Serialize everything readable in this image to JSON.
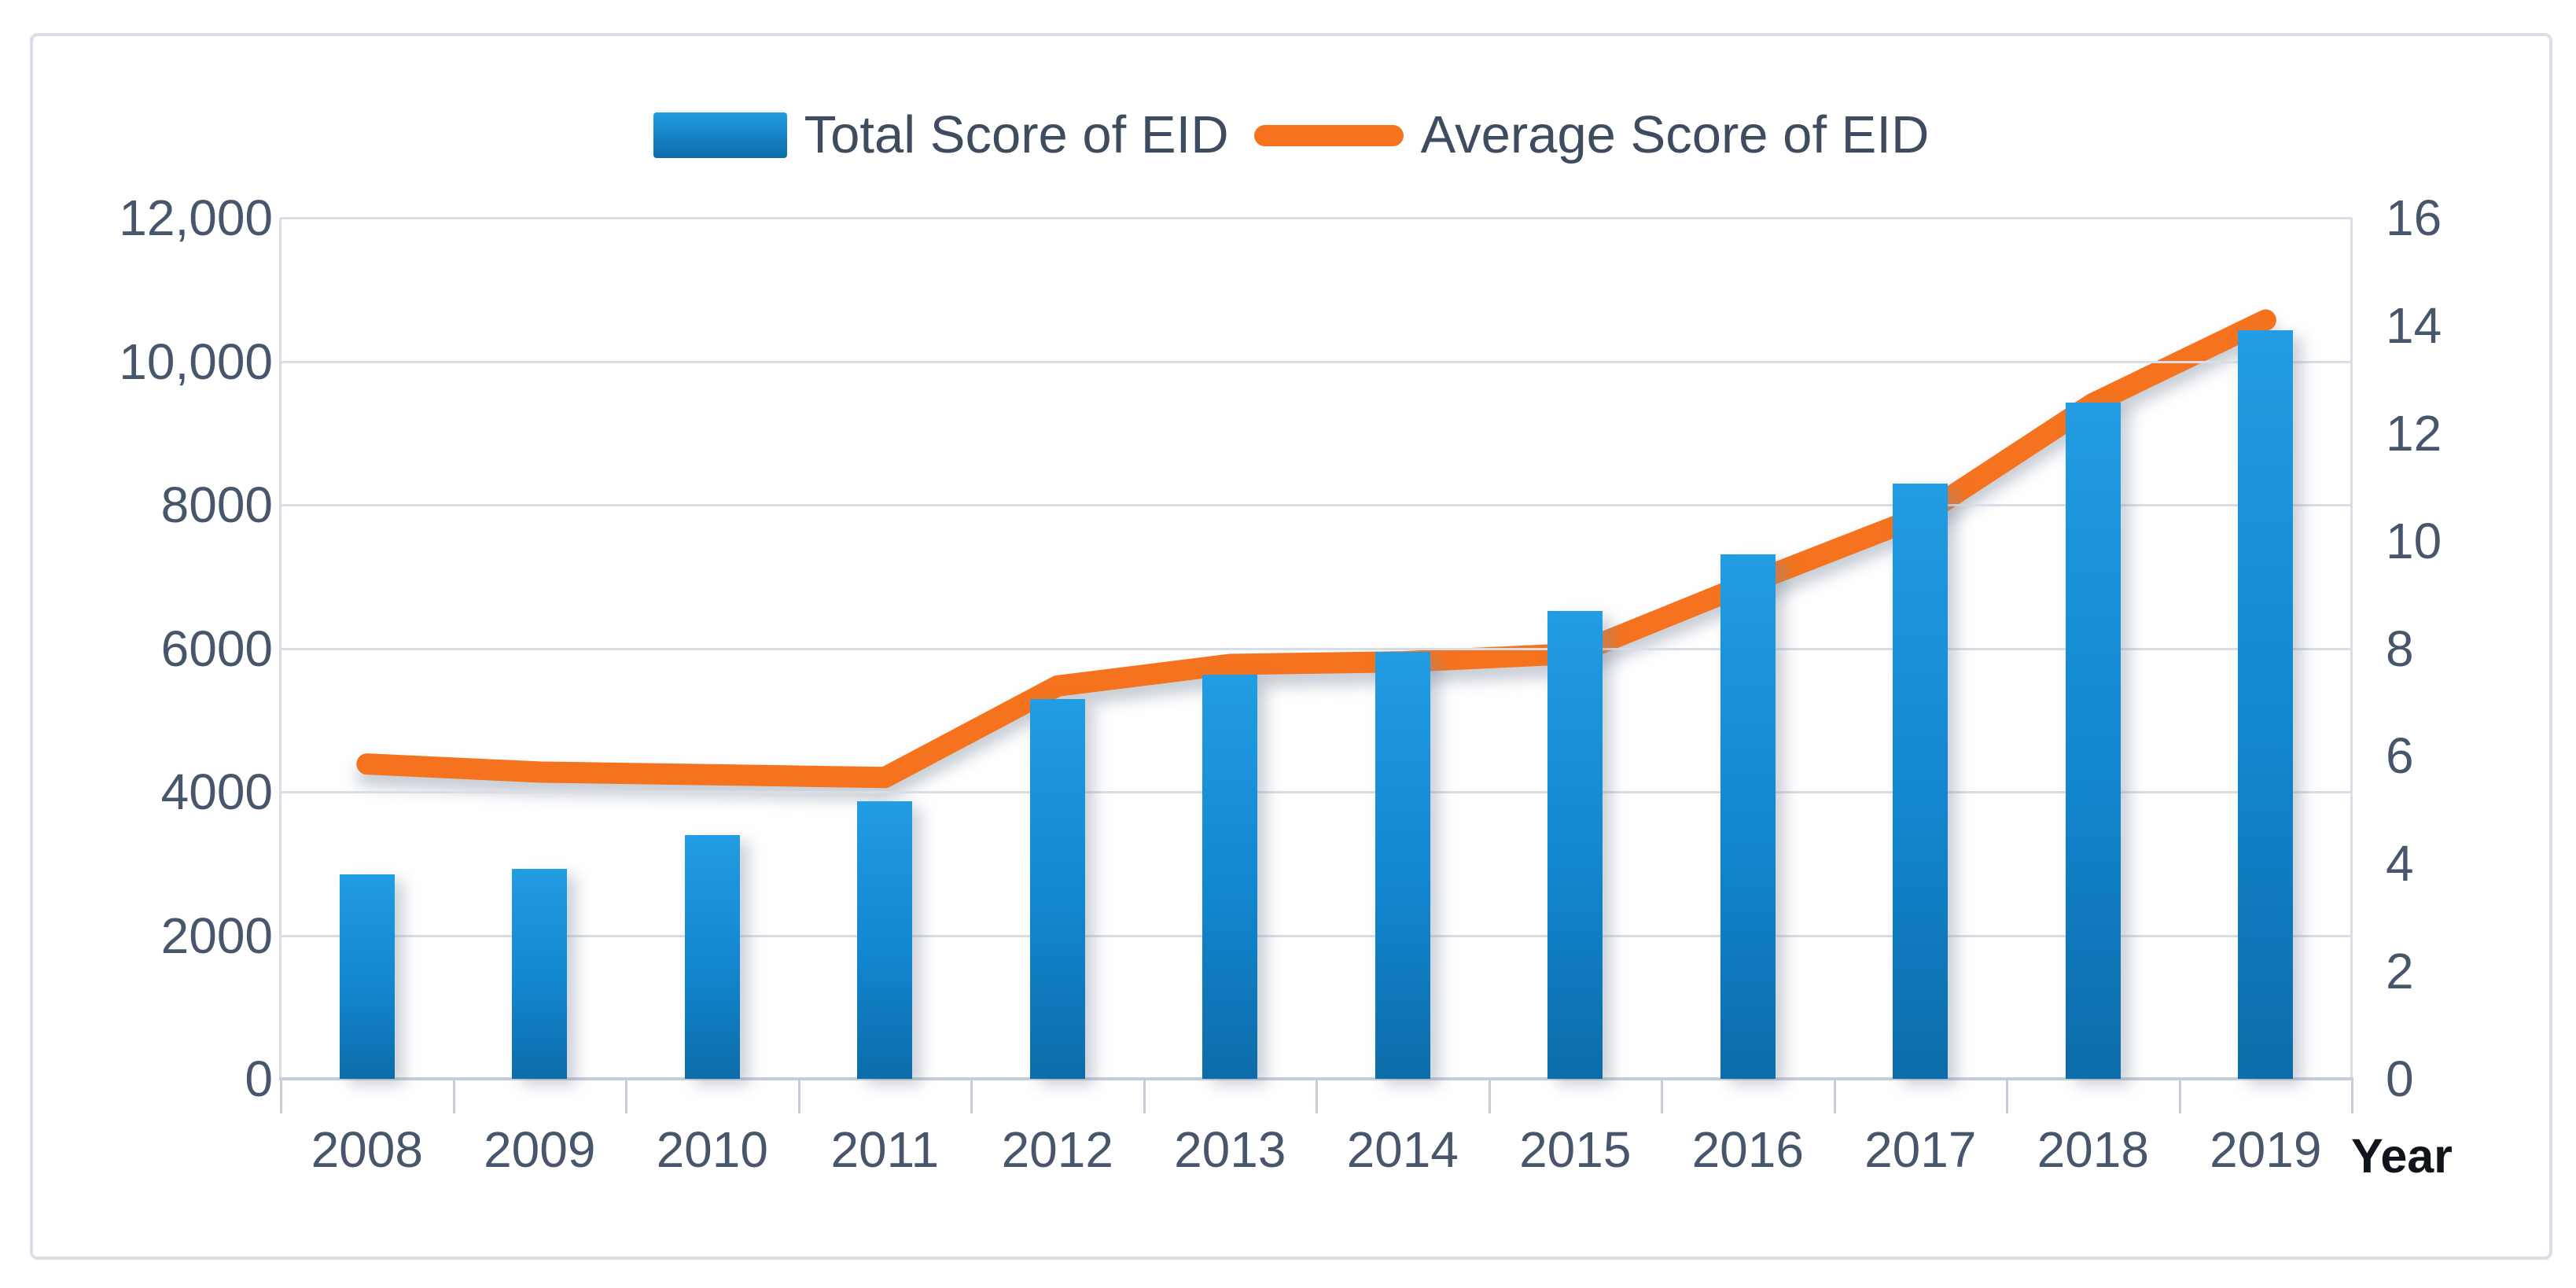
{
  "chart_data": {
    "type": "bar",
    "subtype": "combo-bar-line",
    "title": "",
    "xlabel": "Year",
    "categories": [
      "2008",
      "2009",
      "2010",
      "2011",
      "2012",
      "2013",
      "2014",
      "2015",
      "2016",
      "2017",
      "2018",
      "2019"
    ],
    "series": [
      {
        "name": "Total Score of EID",
        "type": "bar",
        "axis": "left",
        "values": [
          2850,
          2930,
          3400,
          3870,
          5290,
          5630,
          5950,
          6520,
          7310,
          8300,
          9430,
          10430
        ]
      },
      {
        "name": "Average Score of EID",
        "type": "line",
        "axis": "right",
        "values": [
          5.85,
          5.7,
          5.65,
          5.6,
          7.3,
          7.7,
          7.75,
          7.9,
          9.2,
          10.45,
          12.55,
          14.1
        ]
      }
    ],
    "left_axis": {
      "min": 0,
      "max": 12000,
      "step": 2000,
      "tick_labels": [
        "0",
        "2000",
        "4000",
        "6000",
        "8000",
        "10,000",
        "12,000"
      ]
    },
    "right_axis": {
      "min": 0,
      "max": 16,
      "step": 2,
      "tick_labels": [
        "0",
        "2",
        "4",
        "6",
        "8",
        "10",
        "12",
        "14",
        "16"
      ]
    },
    "grid": true,
    "legend_position": "top",
    "colors": {
      "bar_top": "#229CE2",
      "bar_bottom": "#0D6CA9",
      "line": "#F5731E",
      "gridline": "#D9DEE6",
      "axis_line": "#C5CDD8",
      "tick_text": "#47566B",
      "legend_text": "#3F4C60",
      "xlabel_text": "#10151C",
      "frame_border": "#DADEE6"
    }
  }
}
